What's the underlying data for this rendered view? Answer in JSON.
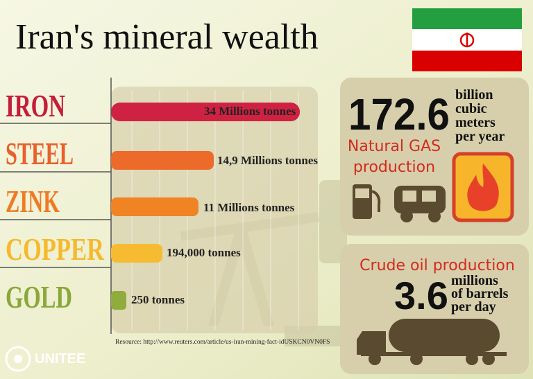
{
  "title": "Iran's mineral wealth",
  "minerals": [
    {
      "name": "IRON",
      "amount": "34 Millions tonnes"
    },
    {
      "name": "STEEL",
      "amount": "14,9 Millions tonnes"
    },
    {
      "name": "ZINK",
      "amount": "11 Millions tonnes"
    },
    {
      "name": "COPPER",
      "amount": "194,000 tonnes"
    },
    {
      "name": "GOLD",
      "amount": "250 tonnes"
    }
  ],
  "gas": {
    "value": "172.6",
    "unit_lines": [
      "billion",
      "cubic",
      "meters",
      "per year"
    ],
    "label_lines": [
      "Natural GAS",
      "production"
    ]
  },
  "oil": {
    "label": "Crude oil production",
    "value": "3.6",
    "unit_lines": [
      "millions",
      "of barrels",
      "per day"
    ]
  },
  "resource": "Resource: http://www.reuters.com/article/us-iran-mining-fact-idUSKCN0VN0FS",
  "logo": "UNITEE"
}
